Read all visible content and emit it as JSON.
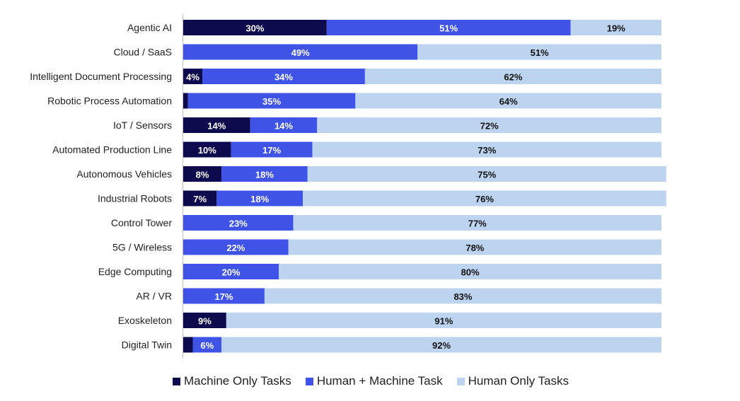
{
  "chart_data": {
    "type": "bar",
    "orientation": "horizontal",
    "stacked": true,
    "categories": [
      "Agentic AI",
      "Cloud / SaaS",
      "Intelligent Document Processing",
      "Robotic Process Automation",
      "IoT / Sensors",
      "Automated Production Line",
      "Autonomous Vehicles",
      "Industrial Robots",
      "Control Tower",
      "5G / Wireless",
      "Edge Computing",
      "AR / VR",
      "Exoskeleton",
      "Digital Twin"
    ],
    "series": [
      {
        "name": "Machine Only Tasks",
        "color": "#0d0a4e",
        "values": [
          30,
          0,
          4,
          1,
          14,
          10,
          8,
          7,
          0,
          0,
          0,
          0,
          9,
          2
        ],
        "labels": [
          "30%",
          "",
          "4%",
          "",
          "14%",
          "10%",
          "8%",
          "7%",
          "",
          "",
          "",
          "",
          "9%",
          ""
        ]
      },
      {
        "name": "Human + Machine Task",
        "color": "#3f54e6",
        "values": [
          51,
          49,
          34,
          35,
          14,
          17,
          18,
          18,
          23,
          22,
          20,
          17,
          0,
          6
        ],
        "labels": [
          "51%",
          "49%",
          "34%",
          "35%",
          "14%",
          "17%",
          "18%",
          "18%",
          "23%",
          "22%",
          "20%",
          "17%",
          "",
          "6%"
        ]
      },
      {
        "name": "Human Only Tasks",
        "color": "#bdd4f0",
        "values": [
          19,
          51,
          62,
          64,
          72,
          73,
          75,
          76,
          77,
          78,
          80,
          83,
          91,
          92
        ],
        "labels": [
          "19%",
          "51%",
          "62%",
          "64%",
          "72%",
          "73%",
          "75%",
          "76%",
          "77%",
          "78%",
          "80%",
          "83%",
          "91%",
          "92%"
        ]
      }
    ],
    "xlim": [
      0,
      100
    ],
    "grid": false,
    "legend_position": "bottom"
  }
}
